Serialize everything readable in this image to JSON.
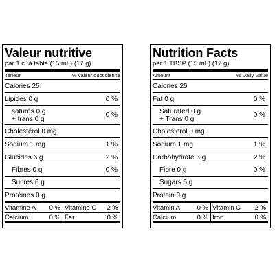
{
  "french": {
    "title": "Valeur nutritive",
    "serving": "par 1 c. à table (15 mL) (17 g)",
    "header_left": "Teneur",
    "header_right": "% valeur quotidienne",
    "calories": "Calories 25",
    "fat": {
      "label": "Lipides 0 g",
      "pct": "0 %"
    },
    "sat_trans": {
      "line1": "saturés 0 g",
      "line2": "+ trans 0 g",
      "pct": "0 %"
    },
    "cholesterol": {
      "label": "Cholestérol 0 mg"
    },
    "sodium": {
      "label": "Sodium 1 mg",
      "pct": "1 %"
    },
    "carbs": {
      "label": "Glucides 6 g",
      "pct": "2 %"
    },
    "fibre": {
      "label": "Fibres 0 g",
      "pct": "0 %"
    },
    "sugars": {
      "label": "Sucres 6 g"
    },
    "protein": {
      "label": "Protéines 0 g"
    },
    "vit_a": {
      "label": "Vitamine A",
      "pct": "0 %"
    },
    "vit_c": {
      "label": "Vitamine C",
      "pct": "2 %"
    },
    "calcium": {
      "label": "Calcium",
      "pct": "0 %"
    },
    "iron": {
      "label": "Fer",
      "pct": "0 %"
    }
  },
  "english": {
    "title": "Nutrition Facts",
    "serving": "per 1 TBSP (15 mL) (17 g)",
    "header_left": "Amount",
    "header_right": "% Daily Value",
    "calories": "Calories 25",
    "fat": {
      "label": "Fat 0 g",
      "pct": "0 %"
    },
    "sat_trans": {
      "line1": "Saturated 0 g",
      "line2": "+ Trans 0 g",
      "pct": "0 %"
    },
    "cholesterol": {
      "label": "Cholesterol 0 mg"
    },
    "sodium": {
      "label": "Sodium 1 mg",
      "pct": "1 %"
    },
    "carbs": {
      "label": "Carbohydrate 6 g",
      "pct": "2 %"
    },
    "fibre": {
      "label": "Fibre 0 g",
      "pct": "0 %"
    },
    "sugars": {
      "label": "Sugars 6 g"
    },
    "protein": {
      "label": "Protein 0 g"
    },
    "vit_a": {
      "label": "Vitamin A",
      "pct": "0 %"
    },
    "vit_c": {
      "label": "Vitamin C",
      "pct": "2 %"
    },
    "calcium": {
      "label": "Calcium",
      "pct": "0 %"
    },
    "iron": {
      "label": "Iron",
      "pct": "0 %"
    }
  }
}
